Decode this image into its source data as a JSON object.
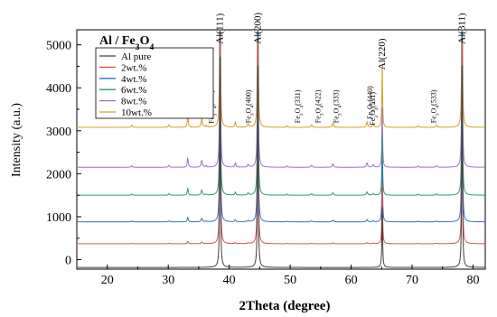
{
  "chart_data": {
    "type": "line",
    "title": "Al / Fe3O4",
    "title_parts": {
      "main": "Al / Fe",
      "sub1": "3",
      "mid": "O",
      "sub2": "4"
    },
    "xlabel": "2Theta (degree)",
    "ylabel": "Intensity (a.u.)",
    "xlim": [
      15,
      82
    ],
    "ylim": [
      -220,
      5350
    ],
    "x_ticks": [
      "20",
      "30",
      "40",
      "50",
      "60",
      "70",
      "80"
    ],
    "x_tick_values": [
      20,
      30,
      40,
      50,
      60,
      70,
      80
    ],
    "y_ticks": [
      "0",
      "1000",
      "2000",
      "3000",
      "4000",
      "5000"
    ],
    "y_tick_values": [
      0,
      1000,
      2000,
      3000,
      4000,
      5000
    ],
    "legend_position": "top-left",
    "grid": false,
    "series": [
      {
        "name": "Al pure",
        "color": "#404040",
        "baseline": -180
      },
      {
        "name": "2wt.%",
        "color": "#e05050",
        "baseline": 370
      },
      {
        "name": "4wt.%",
        "color": "#3070d0",
        "baseline": 880
      },
      {
        "name": "6wt.%",
        "color": "#2a9a6a",
        "baseline": 1500
      },
      {
        "name": "8wt.%",
        "color": "#a070c8",
        "baseline": 2150
      },
      {
        "name": "10wt.%",
        "color": "#d4a020",
        "baseline": 3080
      }
    ],
    "peaks": {
      "al": [
        {
          "x": 38.5,
          "height": 4900
        },
        {
          "x": 44.7,
          "height": 4700
        },
        {
          "x": 65.1,
          "height": 1400
        },
        {
          "x": 78.2,
          "height": 4700
        }
      ],
      "fe3o4": [
        {
          "x": 30.1,
          "height": 60
        },
        {
          "x": 35.5,
          "height": 200
        },
        {
          "x": 43.1,
          "height": 80
        },
        {
          "x": 53.5,
          "height": 60
        },
        {
          "x": 57.0,
          "height": 100
        },
        {
          "x": 62.6,
          "height": 130
        },
        {
          "x": 63.6,
          "height": 70
        },
        {
          "x": 74.0,
          "height": 50
        }
      ],
      "minor": [
        {
          "x": 24.0,
          "height": 50
        },
        {
          "x": 33.2,
          "height": 260
        },
        {
          "x": 36.2,
          "height": 40
        },
        {
          "x": 41.0,
          "height": 120
        },
        {
          "x": 49.5,
          "height": 40
        },
        {
          "x": 71.0,
          "height": 40
        }
      ],
      "fe_scale": [
        0,
        0.2,
        0.4,
        0.6,
        0.8,
        1.0
      ]
    },
    "annotations": [
      {
        "prefix": "Al",
        "sub": "",
        "suffix": "(111)",
        "x": 38.5,
        "y": 5020
      },
      {
        "prefix": "Al",
        "sub": "",
        "suffix": "(200)",
        "x": 44.7,
        "y": 5020
      },
      {
        "prefix": "Al",
        "sub": "",
        "suffix": "(220)",
        "x": 65.1,
        "y": 4420
      },
      {
        "prefix": "Al",
        "sub": "",
        "suffix": "(311)",
        "x": 78.2,
        "y": 5020
      },
      {
        "prefix": "Fe",
        "sub": "3",
        "mid": "O",
        "sub2": "4",
        "suffix": "(311)",
        "x": 36.0,
        "y": 3310
      },
      {
        "prefix": "Fe",
        "sub": "3",
        "mid": "O",
        "sub2": "4",
        "suffix": "(222)",
        "x": 37.0,
        "y": 3170
      },
      {
        "prefix": "Fe",
        "sub": "3",
        "mid": "O",
        "sub2": "4",
        "suffix": "(400)",
        "x": 43.1,
        "y": 3180
      },
      {
        "prefix": "Fe",
        "sub": "3",
        "mid": "O",
        "sub2": "4",
        "suffix": "(331)",
        "x": 51.2,
        "y": 3180
      },
      {
        "prefix": "Fe",
        "sub": "3",
        "mid": "O",
        "sub2": "4",
        "suffix": "(422)",
        "x": 54.5,
        "y": 3180
      },
      {
        "prefix": "Fe",
        "sub": "3",
        "mid": "O",
        "sub2": "4",
        "suffix": "(333)",
        "x": 57.5,
        "y": 3180
      },
      {
        "prefix": "Fe",
        "sub": "3",
        "mid": "O",
        "sub2": "4",
        "suffix": "(440)",
        "x": 63.0,
        "y": 3270
      },
      {
        "prefix": "Fe",
        "sub": "3",
        "mid": "O",
        "sub2": "4",
        "suffix": "(531)",
        "x": 63.5,
        "y": 3130
      },
      {
        "prefix": "Fe",
        "sub": "3",
        "mid": "O",
        "sub2": "4",
        "suffix": "(533)",
        "x": 73.5,
        "y": 3180
      }
    ]
  }
}
